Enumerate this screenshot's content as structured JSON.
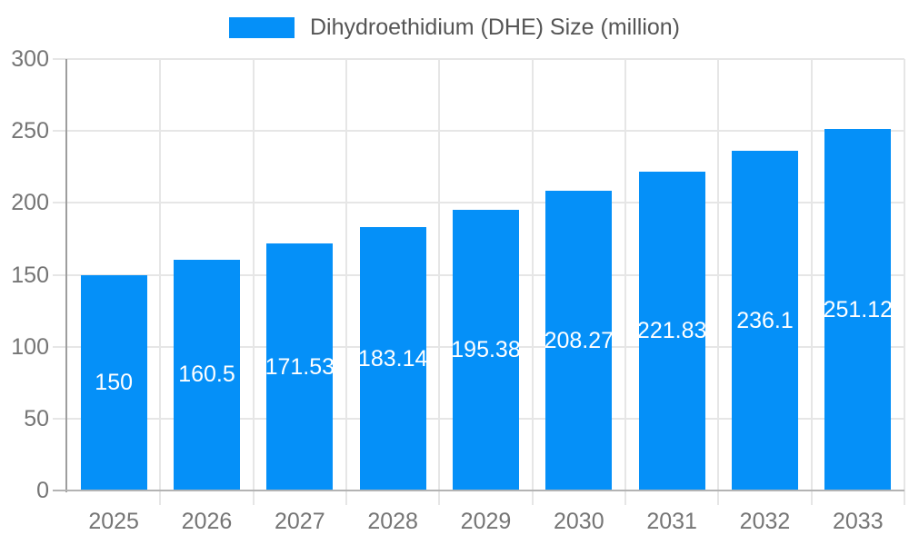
{
  "legend": {
    "label": "Dihydroethidium (DHE) Size (million)"
  },
  "chart_data": {
    "type": "bar",
    "title": "",
    "xlabel": "",
    "ylabel": "",
    "categories": [
      "2025",
      "2026",
      "2027",
      "2028",
      "2029",
      "2030",
      "2031",
      "2032",
      "2033"
    ],
    "series": [
      {
        "name": "Dihydroethidium (DHE) Size (million)",
        "values": [
          150,
          160.5,
          171.53,
          183.14,
          195.38,
          208.27,
          221.83,
          236.1,
          251.12
        ],
        "labels": [
          "150",
          "160.5",
          "171.53",
          "183.14",
          "195.38",
          "208.27",
          "221.83",
          "236.1",
          "251.12"
        ]
      }
    ],
    "ylim": [
      0,
      300
    ],
    "y_ticks": [
      0,
      50,
      100,
      150,
      200,
      250,
      300
    ],
    "grid": true,
    "legend_position": "top"
  },
  "colors": {
    "bar": "#0590F8",
    "grid_line": "#E6E6E6",
    "y_axis_line": "#9E9E9E",
    "x_axis_line": "#B3B3B3",
    "tick_label": "#757575",
    "legend_text": "#555555",
    "value_label": "#FFFFFF",
    "background": "#FFFFFF"
  }
}
